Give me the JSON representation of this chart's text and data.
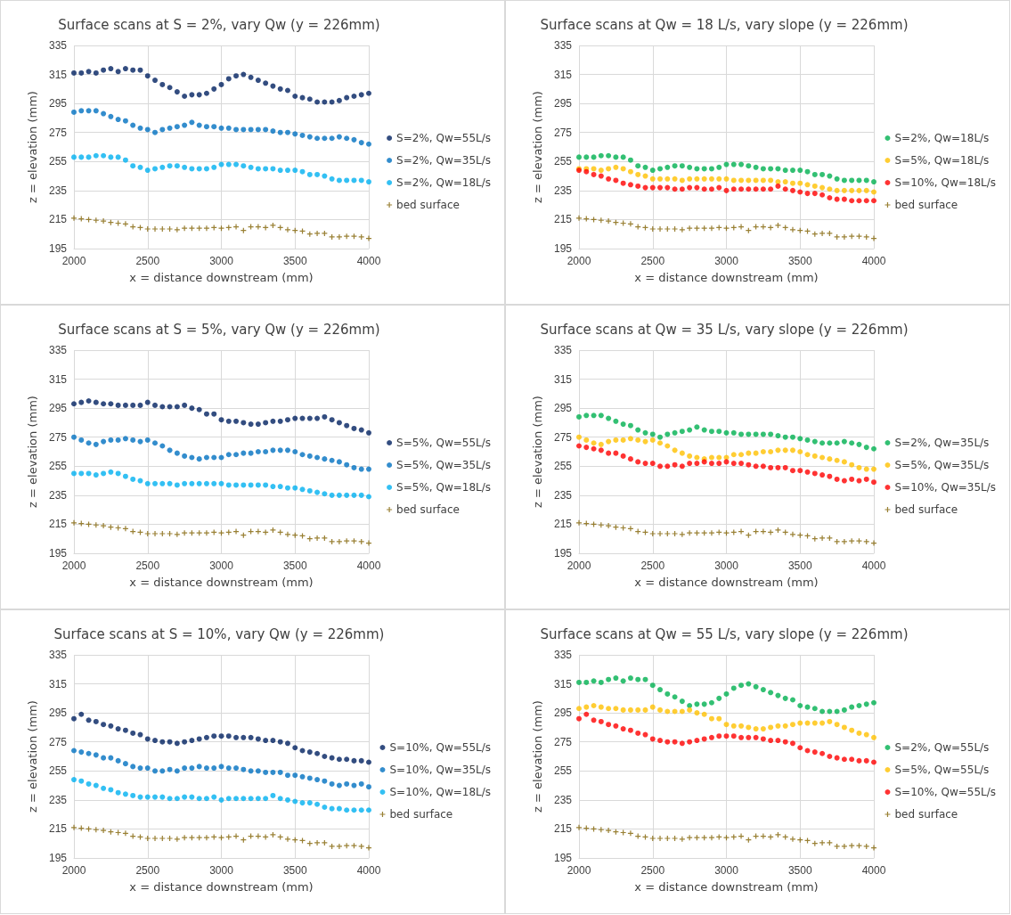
{
  "chart_data": [
    {
      "type": "scatter",
      "title": "Surface scans at S = 2%, vary Qw (y = 226mm)",
      "xlabel": "x = distance downstream (mm)",
      "ylabel": "z = elevation (mm)",
      "xlim": [
        2000,
        4000
      ],
      "xticks": [
        2000,
        2500,
        3000,
        3500,
        4000
      ],
      "ylim": [
        195,
        335
      ],
      "yticks": [
        195,
        215,
        235,
        255,
        275,
        295,
        315,
        335
      ],
      "grid": true,
      "legend": "right",
      "marker": "circle",
      "x": [
        2000,
        2050,
        2100,
        2150,
        2200,
        2250,
        2300,
        2350,
        2400,
        2450,
        2500,
        2550,
        2600,
        2650,
        2700,
        2750,
        2800,
        2850,
        2900,
        2950,
        3000,
        3050,
        3100,
        3150,
        3200,
        3250,
        3300,
        3350,
        3400,
        3450,
        3500,
        3550,
        3600,
        3650,
        3700,
        3750,
        3800,
        3850,
        3900,
        3950,
        4000
      ],
      "series": [
        {
          "name": "S=2%, Qw=55L/s",
          "color": "#002060",
          "values": [
            316,
            316,
            317,
            316,
            318,
            319,
            317,
            319,
            318,
            318,
            314,
            311,
            308,
            306,
            303,
            300,
            301,
            301,
            302,
            305,
            308,
            312,
            314,
            315,
            313,
            311,
            309,
            307,
            305,
            304,
            300,
            299,
            298,
            296,
            296,
            296,
            297,
            299,
            300,
            301,
            302
          ]
        },
        {
          "name": "S=2%, Qw=35L/s",
          "color": "#0070c0",
          "values": [
            289,
            290,
            290,
            290,
            288,
            286,
            284,
            283,
            280,
            278,
            277,
            275,
            277,
            278,
            279,
            280,
            282,
            280,
            279,
            279,
            278,
            278,
            277,
            277,
            277,
            277,
            277,
            276,
            275,
            275,
            274,
            273,
            272,
            271,
            271,
            271,
            272,
            271,
            270,
            268,
            267
          ]
        },
        {
          "name": "S=2%, Qw=18L/s",
          "color": "#00b0f0",
          "values": [
            258,
            258,
            258,
            259,
            259,
            258,
            258,
            256,
            252,
            251,
            249,
            250,
            251,
            252,
            252,
            251,
            250,
            250,
            250,
            251,
            253,
            253,
            253,
            252,
            251,
            250,
            250,
            250,
            249,
            249,
            249,
            248,
            246,
            246,
            245,
            243,
            242,
            242,
            242,
            242,
            241
          ]
        },
        {
          "name": "bed surface",
          "color": "#7f6000",
          "marker": "cross",
          "values": [
            216,
            215.5,
            215,
            214.5,
            214,
            213,
            212.5,
            212,
            210,
            209.5,
            208.5,
            208.5,
            208.5,
            208.5,
            208,
            209,
            209,
            209,
            209,
            209.5,
            209,
            209.5,
            210,
            207.5,
            210,
            210,
            209.5,
            211,
            209.5,
            208,
            207.5,
            207,
            205,
            205.5,
            205.5,
            203,
            203,
            203.5,
            203.5,
            203,
            202
          ]
        }
      ]
    },
    {
      "type": "scatter",
      "title": "Surface scans at Qw = 18 L/s, vary slope (y = 226mm)",
      "xlabel": "x = distance downstream (mm)",
      "ylabel": "z = elevation (mm)",
      "xlim": [
        2000,
        4000
      ],
      "xticks": [
        2000,
        2500,
        3000,
        3500,
        4000
      ],
      "ylim": [
        195,
        335
      ],
      "yticks": [
        195,
        215,
        235,
        255,
        275,
        295,
        315,
        335
      ],
      "grid": true,
      "legend": "right",
      "marker": "circle",
      "x": [
        2000,
        2050,
        2100,
        2150,
        2200,
        2250,
        2300,
        2350,
        2400,
        2450,
        2500,
        2550,
        2600,
        2650,
        2700,
        2750,
        2800,
        2850,
        2900,
        2950,
        3000,
        3050,
        3100,
        3150,
        3200,
        3250,
        3300,
        3350,
        3400,
        3450,
        3500,
        3550,
        3600,
        3650,
        3700,
        3750,
        3800,
        3850,
        3900,
        3950,
        4000
      ],
      "series": [
        {
          "name": "S=2%, Qw=18L/s",
          "color": "#00b050",
          "values": [
            258,
            258,
            258,
            259,
            259,
            258,
            258,
            256,
            252,
            251,
            249,
            250,
            251,
            252,
            252,
            251,
            250,
            250,
            250,
            251,
            253,
            253,
            253,
            252,
            251,
            250,
            250,
            250,
            249,
            249,
            249,
            248,
            246,
            246,
            245,
            243,
            242,
            242,
            242,
            242,
            241
          ]
        },
        {
          "name": "S=5%, Qw=18L/s",
          "color": "#ffc000",
          "values": [
            250,
            250,
            250,
            249,
            250,
            251,
            250,
            248,
            246,
            245,
            243,
            243,
            243,
            243,
            242,
            243,
            243,
            243,
            243,
            243,
            243,
            242,
            242,
            242,
            242,
            242,
            242,
            241,
            241,
            240,
            240,
            239,
            238,
            237,
            236,
            235,
            235,
            235,
            235,
            235,
            234
          ]
        },
        {
          "name": "S=10%, Qw=18L/s",
          "color": "#ff0000",
          "values": [
            249,
            248,
            246,
            245,
            243,
            242,
            240,
            239,
            238,
            237,
            237,
            237,
            237,
            236,
            236,
            237,
            237,
            236,
            236,
            237,
            235,
            236,
            236,
            236,
            236,
            236,
            236,
            238,
            236,
            235,
            234,
            233,
            233,
            232,
            230,
            229,
            229,
            228,
            228,
            228,
            228
          ]
        },
        {
          "name": "bed surface",
          "color": "#7f6000",
          "marker": "cross",
          "values": [
            216,
            215.5,
            215,
            214.5,
            214,
            213,
            212.5,
            212,
            210,
            209.5,
            208.5,
            208.5,
            208.5,
            208.5,
            208,
            209,
            209,
            209,
            209,
            209.5,
            209,
            209.5,
            210,
            207.5,
            210,
            210,
            209.5,
            211,
            209.5,
            208,
            207.5,
            207,
            205,
            205.5,
            205.5,
            203,
            203,
            203.5,
            203.5,
            203,
            202
          ]
        }
      ]
    },
    {
      "type": "scatter",
      "title": "Surface scans at S = 5%, vary Qw (y = 226mm)",
      "xlabel": "x = distance downstream (mm)",
      "ylabel": "z = elevation (mm)",
      "xlim": [
        2000,
        4000
      ],
      "xticks": [
        2000,
        2500,
        3000,
        3500,
        4000
      ],
      "ylim": [
        195,
        335
      ],
      "yticks": [
        195,
        215,
        235,
        255,
        275,
        295,
        315,
        335
      ],
      "grid": true,
      "legend": "right",
      "marker": "circle",
      "x": [
        2000,
        2050,
        2100,
        2150,
        2200,
        2250,
        2300,
        2350,
        2400,
        2450,
        2500,
        2550,
        2600,
        2650,
        2700,
        2750,
        2800,
        2850,
        2900,
        2950,
        3000,
        3050,
        3100,
        3150,
        3200,
        3250,
        3300,
        3350,
        3400,
        3450,
        3500,
        3550,
        3600,
        3650,
        3700,
        3750,
        3800,
        3850,
        3900,
        3950,
        4000
      ],
      "series": [
        {
          "name": "S=5%, Qw=55L/s",
          "color": "#002060",
          "values": [
            298,
            299,
            300,
            299,
            298,
            298,
            297,
            297,
            297,
            297,
            299,
            297,
            296,
            296,
            296,
            297,
            295,
            294,
            291,
            291,
            287,
            286,
            286,
            285,
            284,
            284,
            285,
            286,
            286,
            287,
            288,
            288,
            288,
            288,
            289,
            287,
            285,
            283,
            281,
            280,
            278
          ]
        },
        {
          "name": "S=5%, Qw=35L/s",
          "color": "#0070c0",
          "values": [
            275,
            273,
            271,
            270,
            272,
            273,
            273,
            274,
            273,
            272,
            273,
            271,
            269,
            266,
            264,
            262,
            261,
            260,
            261,
            261,
            261,
            263,
            263,
            264,
            264,
            265,
            265,
            266,
            266,
            266,
            265,
            263,
            262,
            261,
            260,
            259,
            258,
            256,
            254,
            253,
            253
          ]
        },
        {
          "name": "S=5%, Qw=18L/s",
          "color": "#00b0f0",
          "values": [
            250,
            250,
            250,
            249,
            250,
            251,
            250,
            248,
            246,
            245,
            243,
            243,
            243,
            243,
            242,
            243,
            243,
            243,
            243,
            243,
            243,
            242,
            242,
            242,
            242,
            242,
            242,
            241,
            241,
            240,
            240,
            239,
            238,
            237,
            236,
            235,
            235,
            235,
            235,
            235,
            234
          ]
        },
        {
          "name": "bed surface",
          "color": "#7f6000",
          "marker": "cross",
          "values": [
            216,
            215.5,
            215,
            214.5,
            214,
            213,
            212.5,
            212,
            210,
            209.5,
            208.5,
            208.5,
            208.5,
            208.5,
            208,
            209,
            209,
            209,
            209,
            209.5,
            209,
            209.5,
            210,
            207.5,
            210,
            210,
            209.5,
            211,
            209.5,
            208,
            207.5,
            207,
            205,
            205.5,
            205.5,
            203,
            203,
            203.5,
            203.5,
            203,
            202
          ]
        }
      ]
    },
    {
      "type": "scatter",
      "title": "Surface scans at Qw = 35 L/s, vary slope (y = 226mm)",
      "xlabel": "x = distance downstream (mm)",
      "ylabel": "z = elevation (mm)",
      "xlim": [
        2000,
        4000
      ],
      "xticks": [
        2000,
        2500,
        3000,
        3500,
        4000
      ],
      "ylim": [
        195,
        335
      ],
      "yticks": [
        195,
        215,
        235,
        255,
        275,
        295,
        315,
        335
      ],
      "grid": true,
      "legend": "right",
      "marker": "circle",
      "x": [
        2000,
        2050,
        2100,
        2150,
        2200,
        2250,
        2300,
        2350,
        2400,
        2450,
        2500,
        2550,
        2600,
        2650,
        2700,
        2750,
        2800,
        2850,
        2900,
        2950,
        3000,
        3050,
        3100,
        3150,
        3200,
        3250,
        3300,
        3350,
        3400,
        3450,
        3500,
        3550,
        3600,
        3650,
        3700,
        3750,
        3800,
        3850,
        3900,
        3950,
        4000
      ],
      "series": [
        {
          "name": "S=2%, Qw=35L/s",
          "color": "#00b050",
          "values": [
            289,
            290,
            290,
            290,
            288,
            286,
            284,
            283,
            280,
            278,
            277,
            275,
            277,
            278,
            279,
            280,
            282,
            280,
            279,
            279,
            278,
            278,
            277,
            277,
            277,
            277,
            277,
            276,
            275,
            275,
            274,
            273,
            272,
            271,
            271,
            271,
            272,
            271,
            270,
            268,
            267
          ]
        },
        {
          "name": "S=5%, Qw=35L/s",
          "color": "#ffc000",
          "values": [
            275,
            273,
            271,
            270,
            272,
            273,
            273,
            274,
            273,
            272,
            273,
            271,
            269,
            266,
            264,
            262,
            261,
            260,
            261,
            261,
            261,
            263,
            263,
            264,
            264,
            265,
            265,
            266,
            266,
            266,
            265,
            263,
            262,
            261,
            260,
            259,
            258,
            256,
            254,
            253,
            253
          ]
        },
        {
          "name": "S=10%, Qw=35L/s",
          "color": "#ff0000",
          "values": [
            269,
            268,
            267,
            266,
            264,
            264,
            262,
            260,
            258,
            257,
            257,
            255,
            255,
            256,
            255,
            257,
            257,
            258,
            257,
            257,
            258,
            257,
            257,
            256,
            255,
            255,
            254,
            254,
            254,
            252,
            252,
            251,
            250,
            249,
            248,
            246,
            245,
            246,
            245,
            246,
            244
          ]
        },
        {
          "name": "bed surface",
          "color": "#7f6000",
          "marker": "cross",
          "values": [
            216,
            215.5,
            215,
            214.5,
            214,
            213,
            212.5,
            212,
            210,
            209.5,
            208.5,
            208.5,
            208.5,
            208.5,
            208,
            209,
            209,
            209,
            209,
            209.5,
            209,
            209.5,
            210,
            207.5,
            210,
            210,
            209.5,
            211,
            209.5,
            208,
            207.5,
            207,
            205,
            205.5,
            205.5,
            203,
            203,
            203.5,
            203.5,
            203,
            202
          ]
        }
      ]
    },
    {
      "type": "scatter",
      "title": "Surface scans at S = 10%, vary Qw (y = 226mm)",
      "xlabel": "x = distance downstream (mm)",
      "ylabel": "z = elevation (mm)",
      "xlim": [
        2000,
        4000
      ],
      "xticks": [
        2000,
        2500,
        3000,
        3500,
        4000
      ],
      "ylim": [
        195,
        335
      ],
      "yticks": [
        195,
        215,
        235,
        255,
        275,
        295,
        315,
        335
      ],
      "grid": true,
      "legend": "right",
      "marker": "circle",
      "x": [
        2000,
        2050,
        2100,
        2150,
        2200,
        2250,
        2300,
        2350,
        2400,
        2450,
        2500,
        2550,
        2600,
        2650,
        2700,
        2750,
        2800,
        2850,
        2900,
        2950,
        3000,
        3050,
        3100,
        3150,
        3200,
        3250,
        3300,
        3350,
        3400,
        3450,
        3500,
        3550,
        3600,
        3650,
        3700,
        3750,
        3800,
        3850,
        3900,
        3950,
        4000
      ],
      "series": [
        {
          "name": "S=10%, Qw=55L/s",
          "color": "#002060",
          "values": [
            291,
            294,
            290,
            289,
            287,
            286,
            284,
            283,
            281,
            280,
            277,
            276,
            275,
            275,
            274,
            275,
            276,
            277,
            278,
            279,
            279,
            279,
            278,
            278,
            278,
            277,
            276,
            276,
            275,
            274,
            271,
            269,
            268,
            267,
            265,
            264,
            263,
            263,
            262,
            262,
            261
          ]
        },
        {
          "name": "S=10%, Qw=35L/s",
          "color": "#0070c0",
          "values": [
            269,
            268,
            267,
            266,
            264,
            264,
            262,
            260,
            258,
            257,
            257,
            255,
            255,
            256,
            255,
            257,
            257,
            258,
            257,
            257,
            258,
            257,
            257,
            256,
            255,
            255,
            254,
            254,
            254,
            252,
            252,
            251,
            250,
            249,
            248,
            246,
            245,
            246,
            245,
            246,
            244
          ]
        },
        {
          "name": "S=10%, Qw=18L/s",
          "color": "#00b0f0",
          "values": [
            249,
            248,
            246,
            245,
            243,
            242,
            240,
            239,
            238,
            237,
            237,
            237,
            237,
            236,
            236,
            237,
            237,
            236,
            236,
            237,
            235,
            236,
            236,
            236,
            236,
            236,
            236,
            238,
            236,
            235,
            234,
            233,
            233,
            232,
            230,
            229,
            229,
            228,
            228,
            228,
            228
          ]
        },
        {
          "name": "bed surface",
          "color": "#7f6000",
          "marker": "cross",
          "values": [
            216,
            215.5,
            215,
            214.5,
            214,
            213,
            212.5,
            212,
            210,
            209.5,
            208.5,
            208.5,
            208.5,
            208.5,
            208,
            209,
            209,
            209,
            209,
            209.5,
            209,
            209.5,
            210,
            207.5,
            210,
            210,
            209.5,
            211,
            209.5,
            208,
            207.5,
            207,
            205,
            205.5,
            205.5,
            203,
            203,
            203.5,
            203.5,
            203,
            202
          ]
        }
      ]
    },
    {
      "type": "scatter",
      "title": "Surface scans at Qw = 55 L/s, vary slope (y = 226mm)",
      "xlabel": "x = distance downstream (mm)",
      "ylabel": "z = elevation (mm)",
      "xlim": [
        2000,
        4000
      ],
      "xticks": [
        2000,
        2500,
        3000,
        3500,
        4000
      ],
      "ylim": [
        195,
        335
      ],
      "yticks": [
        195,
        215,
        235,
        255,
        275,
        295,
        315,
        335
      ],
      "grid": true,
      "legend": "right",
      "marker": "circle",
      "x": [
        2000,
        2050,
        2100,
        2150,
        2200,
        2250,
        2300,
        2350,
        2400,
        2450,
        2500,
        2550,
        2600,
        2650,
        2700,
        2750,
        2800,
        2850,
        2900,
        2950,
        3000,
        3050,
        3100,
        3150,
        3200,
        3250,
        3300,
        3350,
        3400,
        3450,
        3500,
        3550,
        3600,
        3650,
        3700,
        3750,
        3800,
        3850,
        3900,
        3950,
        4000
      ],
      "series": [
        {
          "name": "S=2%, Qw=55L/s",
          "color": "#00b050",
          "values": [
            316,
            316,
            317,
            316,
            318,
            319,
            317,
            319,
            318,
            318,
            314,
            311,
            308,
            306,
            303,
            300,
            301,
            301,
            302,
            305,
            308,
            312,
            314,
            315,
            313,
            311,
            309,
            307,
            305,
            304,
            300,
            299,
            298,
            296,
            296,
            296,
            297,
            299,
            300,
            301,
            302
          ]
        },
        {
          "name": "S=5%, Qw=55L/s",
          "color": "#ffc000",
          "values": [
            298,
            299,
            300,
            299,
            298,
            298,
            297,
            297,
            297,
            297,
            299,
            297,
            296,
            296,
            296,
            297,
            295,
            294,
            291,
            291,
            287,
            286,
            286,
            285,
            284,
            284,
            285,
            286,
            286,
            287,
            288,
            288,
            288,
            288,
            289,
            287,
            285,
            283,
            281,
            280,
            278
          ]
        },
        {
          "name": "S=10%, Qw=55L/s",
          "color": "#ff0000",
          "values": [
            291,
            294,
            290,
            289,
            287,
            286,
            284,
            283,
            281,
            280,
            277,
            276,
            275,
            275,
            274,
            275,
            276,
            277,
            278,
            279,
            279,
            279,
            278,
            278,
            278,
            277,
            276,
            276,
            275,
            274,
            271,
            269,
            268,
            267,
            265,
            264,
            263,
            263,
            262,
            262,
            261
          ]
        },
        {
          "name": "bed surface",
          "color": "#7f6000",
          "marker": "cross",
          "values": [
            216,
            215.5,
            215,
            214.5,
            214,
            213,
            212.5,
            212,
            210,
            209.5,
            208.5,
            208.5,
            208.5,
            208.5,
            208,
            209,
            209,
            209,
            209,
            209.5,
            209,
            209.5,
            210,
            207.5,
            210,
            210,
            209.5,
            211,
            209.5,
            208,
            207.5,
            207,
            205,
            205.5,
            205.5,
            203,
            203,
            203.5,
            203.5,
            203,
            202
          ]
        }
      ]
    }
  ]
}
